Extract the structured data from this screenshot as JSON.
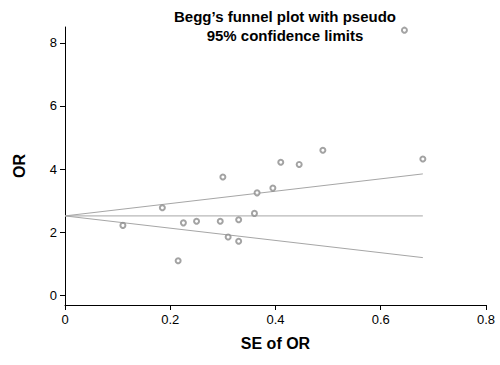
{
  "chart_data": {
    "type": "scatter",
    "title": "Begg’s funnel plot with pseudo\n95% confidence limits",
    "x_label": "SE of OR",
    "y_label": "OR",
    "xlim": [
      0,
      0.8
    ],
    "xticks": [
      0,
      0.2,
      0.4,
      0.6,
      0.8
    ],
    "ylim": [
      -0.3,
      8.5
    ],
    "yticks": [
      0,
      2,
      4,
      6,
      8
    ],
    "grid": false,
    "series": [
      {
        "type": "scatter",
        "marker": "hollow_circle",
        "color": "#8c8c8c",
        "x": [
          0.11,
          0.185,
          0.215,
          0.225,
          0.25,
          0.295,
          0.3,
          0.31,
          0.33,
          0.33,
          0.36,
          0.365,
          0.395,
          0.41,
          0.445,
          0.49,
          0.645,
          0.68
        ],
        "values": [
          2.22,
          2.78,
          1.1,
          2.3,
          2.35,
          2.35,
          3.75,
          1.85,
          1.72,
          2.4,
          2.6,
          3.25,
          3.4,
          4.22,
          4.15,
          4.6,
          8.4,
          4.32
        ]
      },
      {
        "type": "line",
        "line_style": "solid",
        "color": "#a6a6a6",
        "x": [
          0,
          0.68
        ],
        "values": [
          2.52,
          2.52
        ]
      },
      {
        "type": "line",
        "line_style": "solid",
        "color": "#a6a6a6",
        "x": [
          0,
          0.68
        ],
        "values": [
          2.52,
          3.85
        ]
      },
      {
        "type": "line",
        "line_style": "solid",
        "color": "#a6a6a6",
        "x": [
          0,
          0.68
        ],
        "values": [
          2.52,
          1.2
        ]
      }
    ]
  }
}
